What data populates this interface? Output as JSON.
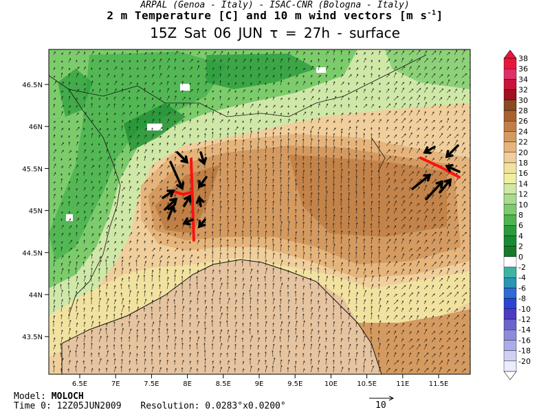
{
  "header": {
    "line1": "ARPAL (Genoa - Italy)  -  ISAC-CNR (Bologna - Italy)",
    "line2_main": "2 m Temperature [C] and 10 m wind vectors [m s",
    "line2_sup": "-1",
    "line2_end": "]",
    "line3": "15Z Sat 06 JUN  τ = 27h  -  surface"
  },
  "axes": {
    "x_ticks": [
      "6.5E",
      "7E",
      "7.5E",
      "8E",
      "8.5E",
      "9E",
      "9.5E",
      "10E",
      "10.5E",
      "11E",
      "11.5E"
    ],
    "y_ticks": [
      "46.5N",
      "46N",
      "45.5N",
      "45N",
      "44.5N",
      "44N",
      "43.5N"
    ]
  },
  "colorbar": {
    "labels": [
      "38",
      "36",
      "34",
      "32",
      "30",
      "28",
      "26",
      "24",
      "22",
      "20",
      "18",
      "16",
      "14",
      "12",
      "10",
      "8",
      "6",
      "4",
      "2",
      "0",
      "-2",
      "-4",
      "-6",
      "-8",
      "-10",
      "-12",
      "-14",
      "-16",
      "-18",
      "-20"
    ],
    "colors": [
      "#e8163c",
      "#e23066",
      "#c8143a",
      "#a0101e",
      "#8a4a22",
      "#a8612e",
      "#c07f45",
      "#d49a60",
      "#e6b57c",
      "#f0cf9c",
      "#f2e2a0",
      "#eef0a0",
      "#cfe8a8",
      "#a8dc8c",
      "#7ccc6c",
      "#4cb450",
      "#2a9c3c",
      "#1a8a30",
      "#167a2a",
      "#ffffff",
      "#3cb4a4",
      "#2c94b4",
      "#2c6cd4",
      "#2c44d4",
      "#4c3cc4",
      "#6c64cc",
      "#8c8cdc",
      "#acacec",
      "#d0d0f4",
      "#ececfc"
    ],
    "top_arrow_color": "#e8163c",
    "bottom_arrow_color": "#ffffff"
  },
  "footer": {
    "model_label": "Model:",
    "model_value": "MOLOCH",
    "time_label": "Time 0:",
    "time_value": "12Z05JUN2009",
    "res_label": "Resolution:",
    "res_value": "0.0283°x0.0200°",
    "ref_vector_label": "10"
  }
}
